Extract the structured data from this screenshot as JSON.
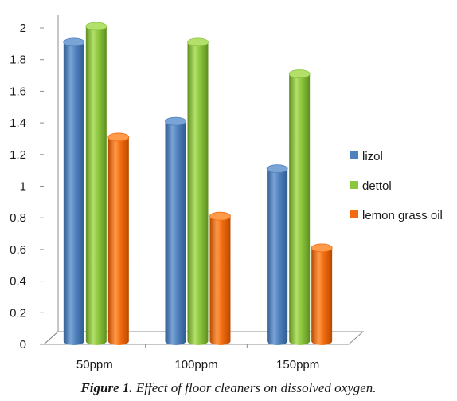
{
  "caption": {
    "label": "Figure 1.",
    "text": "Effect of floor cleaners on dissolved oxygen."
  },
  "chart_data": {
    "type": "bar",
    "categories": [
      "50ppm",
      "100ppm",
      "150ppm"
    ],
    "series": [
      {
        "name": "lizol",
        "values": [
          1.9,
          1.4,
          1.1
        ]
      },
      {
        "name": "dettol",
        "values": [
          2.0,
          1.9,
          1.7
        ]
      },
      {
        "name": "lemon grass oil",
        "values": [
          1.3,
          0.8,
          0.6
        ]
      }
    ],
    "yticks": [
      "0",
      "0.2",
      "0.4",
      "0.6",
      "0.8",
      "1",
      "1.2",
      "1.4",
      "1.6",
      "1.8",
      "2"
    ],
    "ylim": [
      0,
      2
    ],
    "grid": false,
    "legend_position": "right",
    "colors": {
      "lizol": {
        "main": "#4f81bd",
        "light": "#7aa3d6",
        "dark": "#2e5a8f"
      },
      "dettol": {
        "main": "#8cc63f",
        "light": "#b3e06a",
        "dark": "#5e8f1f"
      },
      "lemon grass oil": {
        "main": "#f26b0f",
        "light": "#ff9a4a",
        "dark": "#b84a00"
      }
    }
  }
}
